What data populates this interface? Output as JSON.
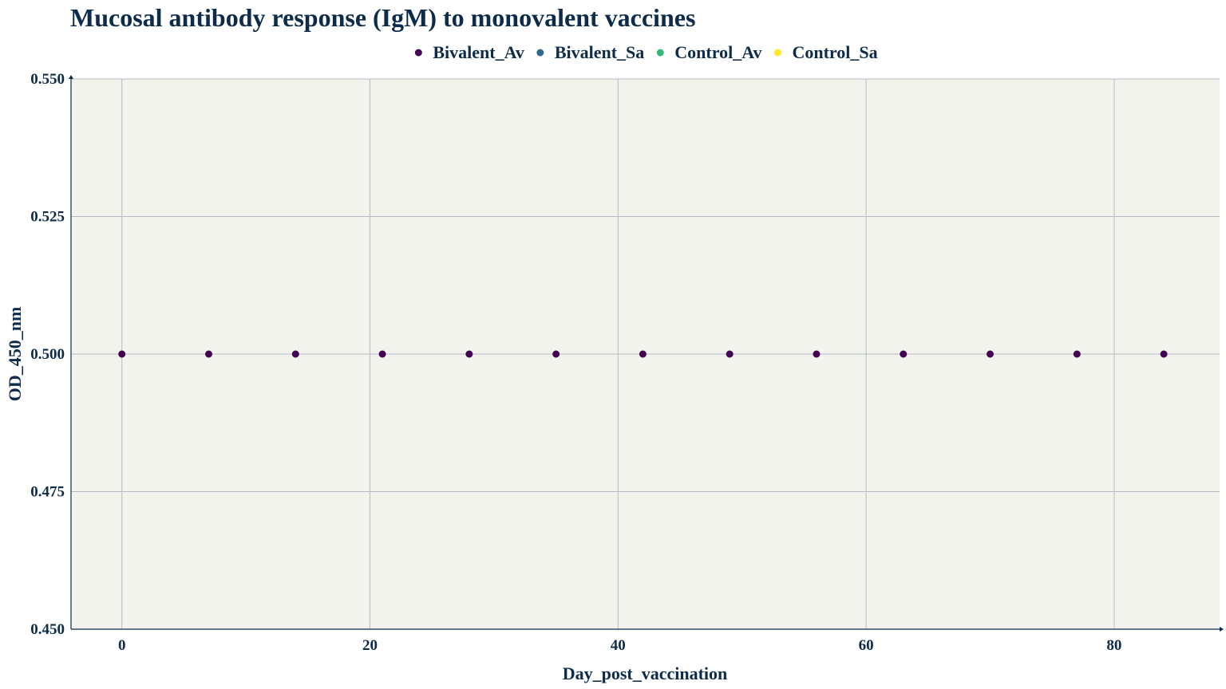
{
  "chart_data": {
    "type": "scatter",
    "title": "Mucosal antibody response (IgM) to monovalent vaccines",
    "xlabel": "Day_post_vaccination",
    "ylabel": "OD_450_nm",
    "xlim": [
      -4.1,
      88.5
    ],
    "ylim": [
      0.45,
      0.55
    ],
    "xticks": [
      0,
      20,
      40,
      60,
      80
    ],
    "xtick_labels": [
      "0",
      "20",
      "40",
      "60",
      "80"
    ],
    "yticks": [
      0.45,
      0.475,
      0.5,
      0.525,
      0.55
    ],
    "ytick_labels": [
      "0.450",
      "0.475",
      "0.500",
      "0.525",
      "0.550"
    ],
    "grid": true,
    "legend_position": "top-center",
    "series": [
      {
        "name": "Bivalent_Av",
        "color": "#440154",
        "x": [
          0,
          7,
          14,
          21,
          28,
          35,
          42,
          49,
          56,
          63,
          70,
          77,
          84
        ],
        "y": [
          0.5,
          0.5,
          0.5,
          0.5,
          0.5,
          0.5,
          0.5,
          0.5,
          0.5,
          0.5,
          0.5,
          0.5,
          0.5
        ]
      },
      {
        "name": "Bivalent_Sa",
        "color": "#31688e",
        "x": [],
        "y": []
      },
      {
        "name": "Control_Av",
        "color": "#35b779",
        "x": [],
        "y": []
      },
      {
        "name": "Control_Sa",
        "color": "#fde725",
        "x": [],
        "y": []
      }
    ]
  },
  "style": {
    "plot_background": "#f3f3ee",
    "grid_color": "#b3bcc2",
    "axis_color": "#0d2b4a",
    "text_color": "#0d2b4a"
  }
}
